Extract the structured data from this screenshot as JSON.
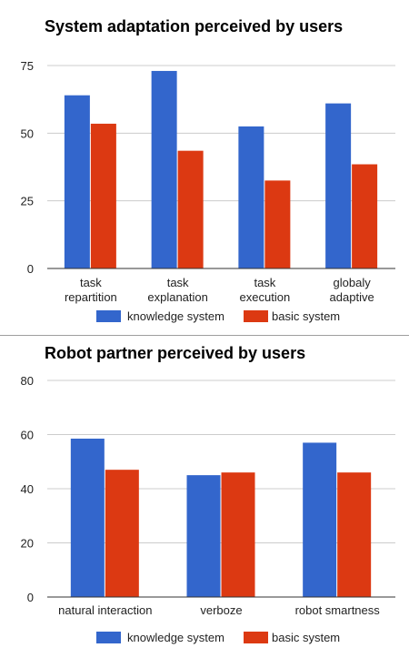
{
  "chart_data": [
    {
      "type": "bar",
      "title": "System adaptation perceived by users",
      "categories": [
        [
          "task",
          "repartition"
        ],
        [
          "task",
          "explanation"
        ],
        [
          "task",
          "execution"
        ],
        [
          "globaly",
          "adaptive"
        ]
      ],
      "series": [
        {
          "name": "knowledge system",
          "color": "#3366cc",
          "values": [
            64,
            73,
            52.5,
            61
          ]
        },
        {
          "name": "basic system",
          "color": "#dc3912",
          "values": [
            53.5,
            43.5,
            32.5,
            38.5
          ]
        }
      ],
      "yticks": [
        0,
        25,
        50,
        75
      ],
      "ylim": [
        0,
        75
      ],
      "grid": true,
      "legend": "bottom"
    },
    {
      "type": "bar",
      "title": "Robot partner perceived by users",
      "categories": [
        [
          "natural interaction"
        ],
        [
          "verboze"
        ],
        [
          "robot smartness"
        ]
      ],
      "series": [
        {
          "name": "knowledge system",
          "color": "#3366cc",
          "values": [
            58.5,
            45,
            57
          ]
        },
        {
          "name": "basic system",
          "color": "#dc3912",
          "values": [
            47,
            46,
            46
          ]
        }
      ],
      "yticks": [
        0,
        20,
        40,
        60,
        80
      ],
      "ylim": [
        0,
        80
      ],
      "grid": true,
      "legend": "bottom"
    }
  ]
}
